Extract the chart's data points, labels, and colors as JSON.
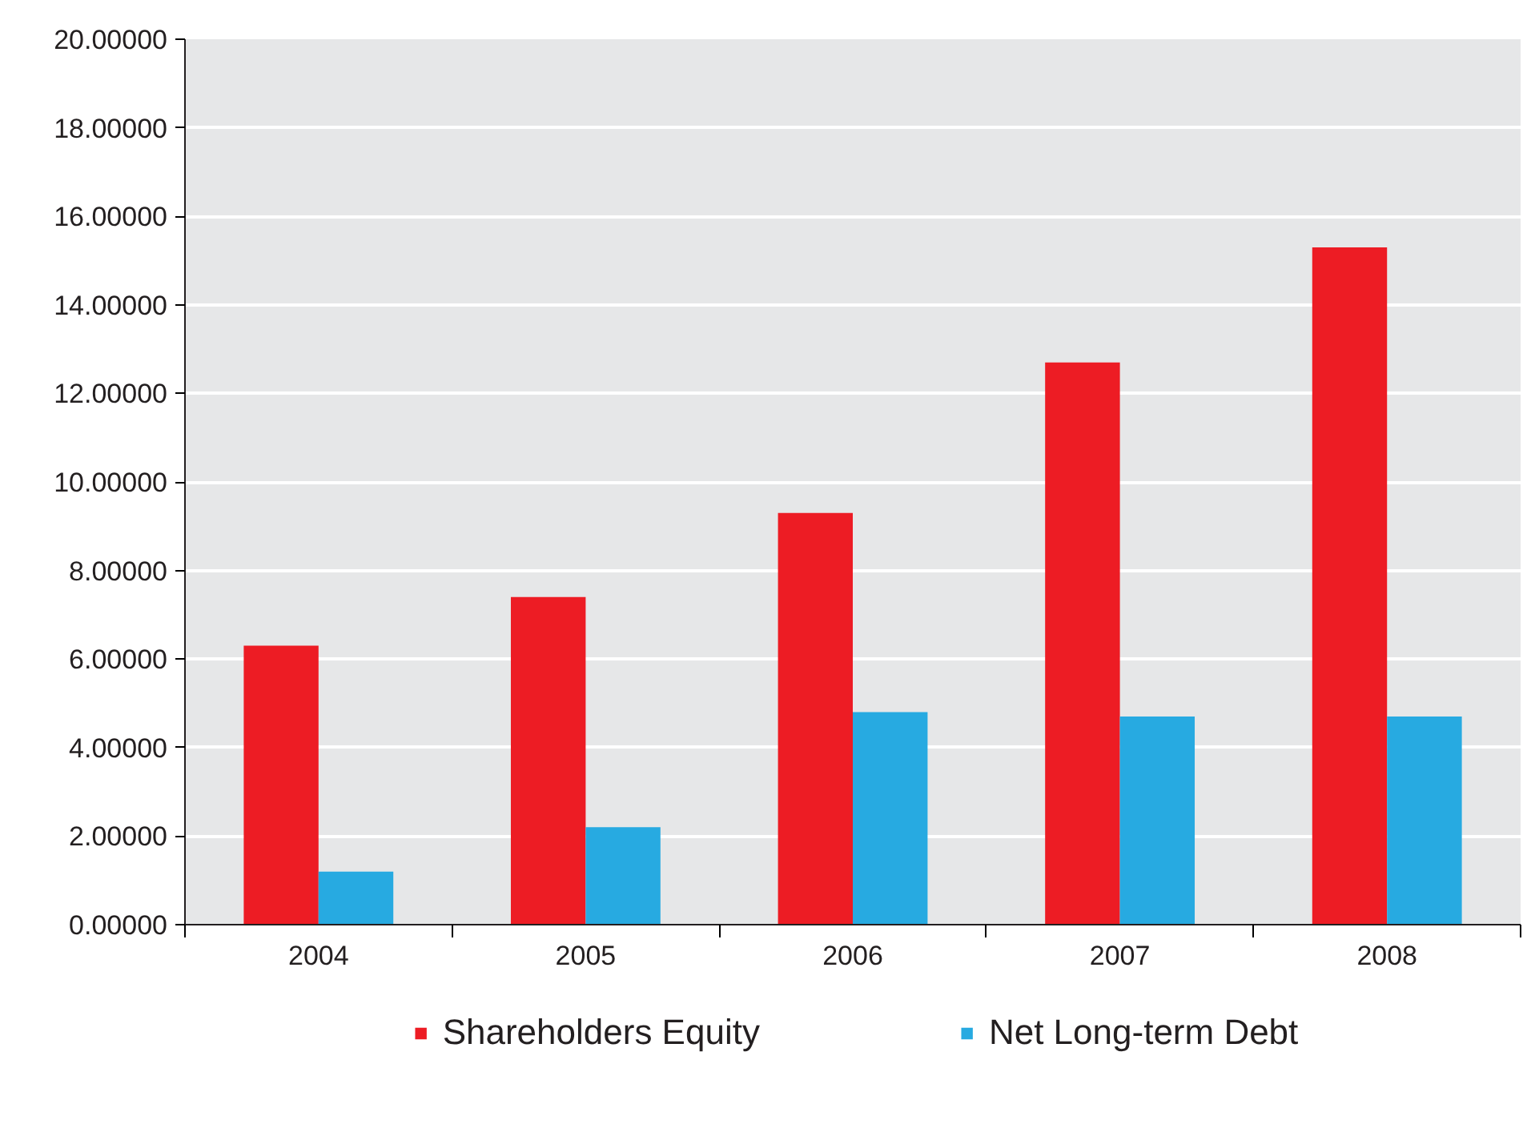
{
  "chart_data": {
    "type": "bar",
    "categories": [
      "2004",
      "2005",
      "2006",
      "2007",
      "2008"
    ],
    "series": [
      {
        "name": "Shareholders Equity",
        "color": "#ed1c24",
        "values": [
          6.3,
          7.4,
          9.3,
          12.7,
          15.3
        ]
      },
      {
        "name": "Net Long-term Debt",
        "color": "#27aae1",
        "values": [
          1.2,
          2.2,
          4.8,
          4.7,
          4.7
        ]
      }
    ],
    "ylim": [
      0,
      20
    ],
    "yticks": [
      {
        "value": 0,
        "label": "0.00000"
      },
      {
        "value": 2,
        "label": "2.00000"
      },
      {
        "value": 4,
        "label": "4.00000"
      },
      {
        "value": 6,
        "label": "6.00000"
      },
      {
        "value": 8,
        "label": "8.00000"
      },
      {
        "value": 10,
        "label": "10.00000"
      },
      {
        "value": 12,
        "label": "12.00000"
      },
      {
        "value": 14,
        "label": "14.00000"
      },
      {
        "value": 16,
        "label": "16.00000"
      },
      {
        "value": 18,
        "label": "18.00000"
      },
      {
        "value": 20,
        "label": "20.00000"
      }
    ],
    "grid": "y",
    "legend": "bottom"
  }
}
